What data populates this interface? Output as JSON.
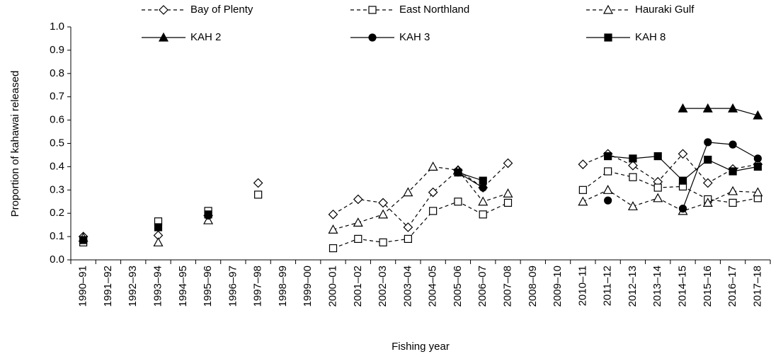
{
  "chart_data": {
    "type": "line",
    "y_label": "Proportion of kahawai released",
    "x_label": "Fishing year",
    "categories": [
      "1990–91",
      "1991–92",
      "1992–93",
      "1993–94",
      "1994–95",
      "1995–96",
      "1996–97",
      "1997–98",
      "1998–99",
      "1999–00",
      "2000–01",
      "2001–02",
      "2002–03",
      "2003–04",
      "2004–05",
      "2005–06",
      "2006–07",
      "2007–08",
      "2008–09",
      "2009–10",
      "2010–11",
      "2011–12",
      "2012–13",
      "2013–14",
      "2014–15",
      "2015–16",
      "2016–17",
      "2017–18"
    ],
    "ylim": [
      0,
      1
    ],
    "yticks": [
      {
        "value": 0,
        "label": "0.0"
      },
      0.1,
      0.2,
      0.3,
      0.4,
      0.5,
      0.6,
      0.7,
      0.8,
      0.9,
      {
        "value": 1,
        "label": "1.0"
      }
    ],
    "grid": false,
    "legend": "top",
    "series": [
      {
        "name": "Bay of Plenty",
        "color": "#000000",
        "dashed": true,
        "marker": "diamond",
        "filled": false,
        "values": [
          0.1,
          null,
          null,
          0.105,
          null,
          0.19,
          null,
          0.33,
          null,
          null,
          0.195,
          0.26,
          0.245,
          0.14,
          0.29,
          0.385,
          0.31,
          0.415,
          null,
          null,
          0.41,
          0.455,
          0.405,
          0.335,
          0.455,
          0.33,
          0.39,
          0.41
        ]
      },
      {
        "name": "East Northland",
        "color": "#000000",
        "dashed": true,
        "marker": "square",
        "filled": false,
        "values": [
          0.075,
          null,
          null,
          0.165,
          null,
          0.21,
          null,
          0.28,
          null,
          null,
          0.05,
          0.09,
          0.075,
          0.09,
          0.21,
          0.25,
          0.195,
          0.245,
          null,
          null,
          0.3,
          0.38,
          0.355,
          0.31,
          0.315,
          0.26,
          0.245,
          0.265
        ]
      },
      {
        "name": "Hauraki Gulf",
        "color": "#000000",
        "dashed": true,
        "marker": "triangle",
        "filled": false,
        "values": [
          0.095,
          null,
          null,
          0.075,
          null,
          0.17,
          null,
          null,
          null,
          null,
          0.13,
          0.16,
          0.195,
          0.29,
          0.4,
          0.385,
          0.25,
          0.285,
          null,
          null,
          0.25,
          0.3,
          0.23,
          0.265,
          0.21,
          0.245,
          0.295,
          0.29
        ]
      },
      {
        "name": "KAH 2",
        "color": "#000000",
        "dashed": false,
        "marker": "triangle",
        "filled": true,
        "values": [
          null,
          null,
          null,
          null,
          null,
          null,
          null,
          null,
          null,
          null,
          null,
          null,
          null,
          null,
          null,
          null,
          null,
          null,
          null,
          null,
          null,
          null,
          null,
          null,
          0.65,
          0.65,
          0.65,
          0.62
        ]
      },
      {
        "name": "KAH 3",
        "color": "#000000",
        "dashed": false,
        "marker": "circle",
        "filled": true,
        "values": [
          null,
          null,
          null,
          null,
          null,
          0.19,
          null,
          null,
          null,
          null,
          null,
          null,
          null,
          null,
          null,
          0.375,
          0.31,
          null,
          null,
          null,
          null,
          0.255,
          null,
          null,
          0.22,
          0.505,
          0.495,
          0.435
        ]
      },
      {
        "name": "KAH 8",
        "color": "#000000",
        "dashed": false,
        "marker": "square",
        "filled": true,
        "values": [
          0.085,
          null,
          null,
          0.14,
          null,
          0.195,
          null,
          null,
          null,
          null,
          null,
          null,
          null,
          null,
          null,
          0.375,
          0.34,
          null,
          null,
          null,
          null,
          0.445,
          0.435,
          0.445,
          0.34,
          0.43,
          0.38,
          0.4
        ]
      }
    ]
  }
}
